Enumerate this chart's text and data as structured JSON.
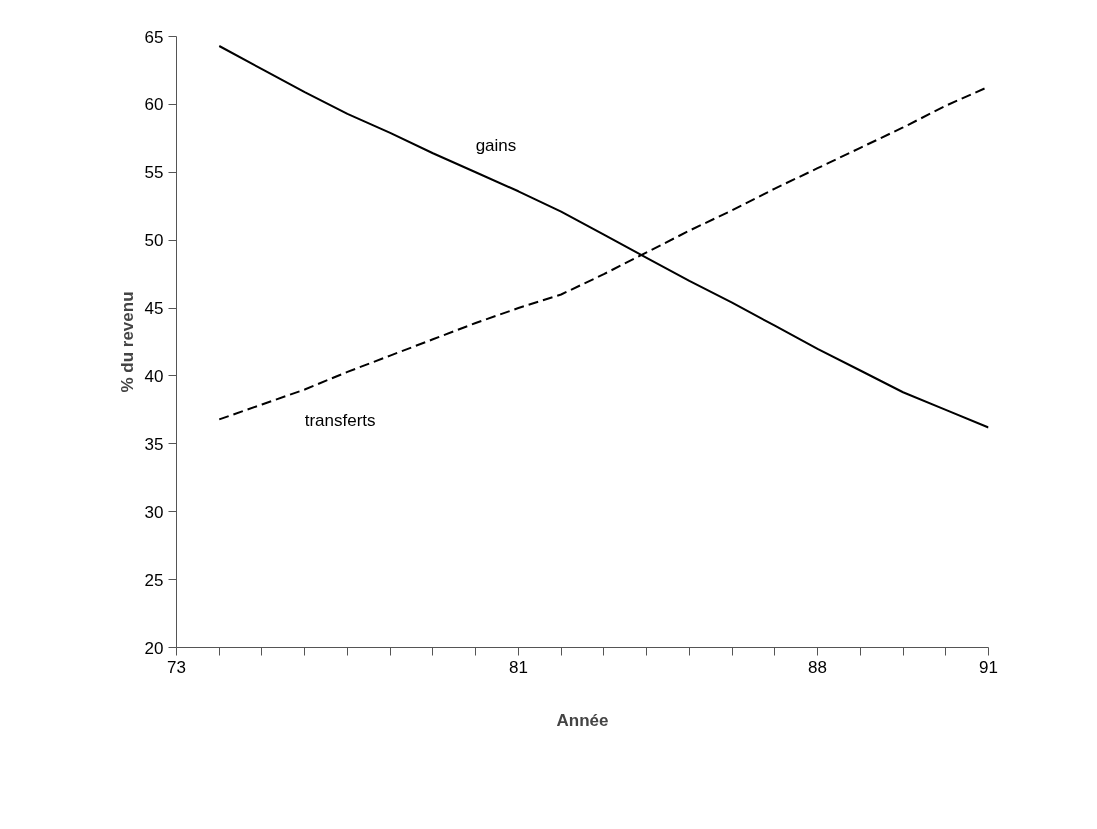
{
  "chart_data": {
    "type": "line",
    "xlabel": "Année",
    "ylabel": "% du revenu",
    "categories": [
      "73",
      null,
      null,
      null,
      null,
      null,
      null,
      null,
      "81",
      null,
      null,
      null,
      null,
      null,
      null,
      "88",
      null,
      null,
      null,
      "91"
    ],
    "series": [
      {
        "name": "gains",
        "color": "#000000",
        "line_style": "solid",
        "values": [
          null,
          64.3,
          62.6,
          60.9,
          59.3,
          57.9,
          56.4,
          55.0,
          53.6,
          52.1,
          50.4,
          48.7,
          47.0,
          45.4,
          43.7,
          42.0,
          40.4,
          38.8,
          37.5,
          36.2
        ]
      },
      {
        "name": "transferts",
        "color": "#000000",
        "line_style": "dashed",
        "values": [
          null,
          36.8,
          37.9,
          39.0,
          40.3,
          41.5,
          42.7,
          43.9,
          45.0,
          46.0,
          47.5,
          49.1,
          50.7,
          52.2,
          53.8,
          55.3,
          56.8,
          58.3,
          59.9,
          61.3
        ]
      }
    ],
    "ylim": [
      20,
      65
    ],
    "yticks": [
      20,
      25,
      30,
      35,
      40,
      45,
      50,
      55,
      60,
      65
    ],
    "grid": false,
    "marker": "none"
  }
}
